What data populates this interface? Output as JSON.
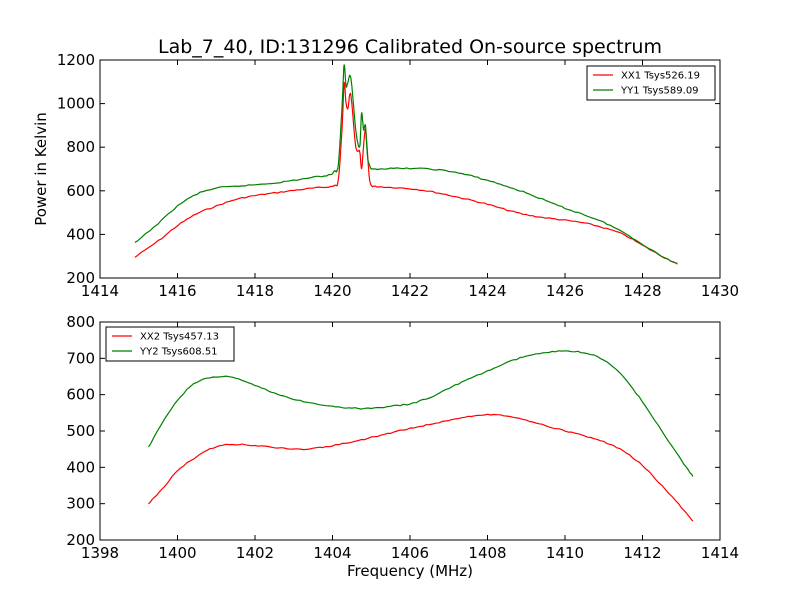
{
  "chart_data": [
    {
      "type": "line",
      "title": "Lab_7_40, ID:131296 Calibrated On-source spectrum",
      "xlabel": "",
      "ylabel": "Power in Kelvin",
      "xlim": [
        1414,
        1430
      ],
      "ylim": [
        200,
        1200
      ],
      "xticks": [
        "1414",
        "1416",
        "1418",
        "1420",
        "1422",
        "1424",
        "1426",
        "1428",
        "1430"
      ],
      "yticks": [
        "200",
        "400",
        "600",
        "800",
        "1000",
        "1200"
      ],
      "legend_position": "top-right",
      "series": [
        {
          "name": "XX1 Tsys526.19",
          "color": "#ff0000",
          "x": [
            1414.9,
            1415.5,
            1416.0,
            1416.5,
            1417.0,
            1417.5,
            1418.0,
            1418.5,
            1419.0,
            1419.5,
            1419.9,
            1420.05,
            1420.15,
            1420.25,
            1420.3,
            1420.35,
            1420.4,
            1420.45,
            1420.5,
            1420.6,
            1420.7,
            1420.75,
            1420.8,
            1420.85,
            1420.9,
            1420.95,
            1421.0,
            1421.1,
            1421.5,
            1422.0,
            1422.5,
            1423.0,
            1423.5,
            1424.0,
            1424.5,
            1425.0,
            1425.5,
            1426.0,
            1426.5,
            1427.0,
            1427.5,
            1428.0,
            1428.5,
            1428.9
          ],
          "values": [
            295,
            370,
            440,
            495,
            530,
            560,
            578,
            590,
            602,
            612,
            618,
            625,
            650,
            900,
            1095,
            1000,
            980,
            1045,
            1000,
            800,
            780,
            700,
            800,
            880,
            780,
            660,
            625,
            620,
            616,
            610,
            598,
            580,
            560,
            538,
            512,
            490,
            476,
            465,
            452,
            430,
            400,
            350,
            300,
            265
          ]
        },
        {
          "name": "YY1 Tsys589.09",
          "color": "#008000",
          "x": [
            1414.9,
            1415.5,
            1416.0,
            1416.5,
            1417.0,
            1417.5,
            1418.0,
            1418.5,
            1419.0,
            1419.5,
            1419.9,
            1420.05,
            1420.15,
            1420.25,
            1420.3,
            1420.35,
            1420.4,
            1420.45,
            1420.5,
            1420.6,
            1420.7,
            1420.75,
            1420.8,
            1420.85,
            1420.9,
            1420.95,
            1421.0,
            1421.1,
            1421.5,
            1422.0,
            1422.5,
            1423.0,
            1423.5,
            1424.0,
            1424.5,
            1425.0,
            1425.5,
            1426.0,
            1426.5,
            1427.0,
            1427.5,
            1428.0,
            1428.5,
            1428.9
          ],
          "values": [
            360,
            450,
            530,
            585,
            612,
            620,
            628,
            636,
            648,
            662,
            672,
            690,
            720,
            1000,
            1180,
            1080,
            1100,
            1130,
            1080,
            880,
            800,
            960,
            880,
            900,
            760,
            720,
            700,
            700,
            702,
            703,
            700,
            690,
            672,
            648,
            620,
            590,
            555,
            520,
            490,
            455,
            410,
            355,
            300,
            265
          ]
        }
      ]
    },
    {
      "type": "line",
      "title": "",
      "xlabel": "Frequency (MHz)",
      "ylabel": "",
      "xlim": [
        1398,
        1414
      ],
      "ylim": [
        200,
        800
      ],
      "xticks": [
        "1398",
        "1400",
        "1402",
        "1404",
        "1406",
        "1408",
        "1410",
        "1412",
        "1414"
      ],
      "yticks": [
        "200",
        "300",
        "400",
        "500",
        "600",
        "700",
        "800"
      ],
      "legend_position": "top-left",
      "series": [
        {
          "name": "XX2 Tsys457.13",
          "color": "#ff0000",
          "x": [
            1399.25,
            1399.6,
            1400.0,
            1400.5,
            1401.0,
            1401.5,
            1402.0,
            1402.5,
            1403.0,
            1403.5,
            1404.0,
            1404.5,
            1405.0,
            1405.5,
            1406.0,
            1406.5,
            1407.0,
            1407.5,
            1408.0,
            1408.5,
            1409.0,
            1409.5,
            1410.0,
            1410.5,
            1411.0,
            1411.5,
            1412.0,
            1412.5,
            1413.0,
            1413.3
          ],
          "values": [
            300,
            340,
            390,
            430,
            457,
            463,
            460,
            455,
            450,
            452,
            460,
            470,
            482,
            495,
            507,
            518,
            530,
            540,
            545,
            542,
            530,
            515,
            500,
            487,
            470,
            445,
            405,
            350,
            290,
            252
          ]
        },
        {
          "name": "YY2 Tsys608.51",
          "color": "#008000",
          "x": [
            1399.25,
            1399.6,
            1400.0,
            1400.5,
            1401.0,
            1401.5,
            1402.0,
            1402.5,
            1403.0,
            1403.5,
            1404.0,
            1404.5,
            1405.0,
            1405.5,
            1406.0,
            1406.5,
            1407.0,
            1407.5,
            1408.0,
            1408.5,
            1409.0,
            1409.5,
            1410.0,
            1410.5,
            1411.0,
            1411.5,
            1412.0,
            1412.5,
            1413.0,
            1413.3
          ],
          "values": [
            455,
            520,
            585,
            635,
            650,
            645,
            625,
            605,
            588,
            575,
            567,
            563,
            562,
            568,
            575,
            592,
            618,
            642,
            665,
            688,
            706,
            715,
            720,
            715,
            695,
            650,
            580,
            500,
            420,
            375
          ]
        }
      ]
    }
  ]
}
